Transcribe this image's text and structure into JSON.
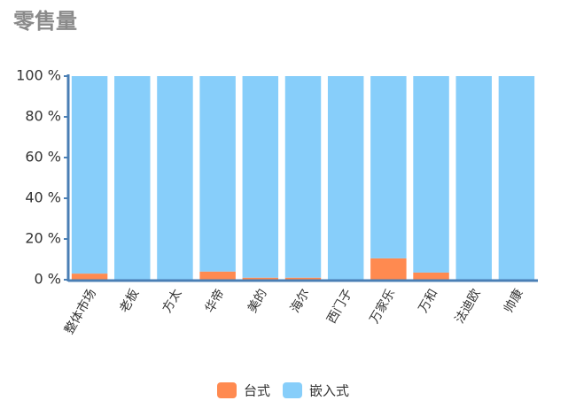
{
  "chart_data": {
    "type": "stacked-bar",
    "title": "零售量",
    "categories": [
      "整体市场",
      "老板",
      "方太",
      "华帝",
      "美的",
      "海尔",
      "西门子",
      "万家乐",
      "万和",
      "法迪欧",
      "帅康"
    ],
    "series": [
      {
        "name": "台式",
        "color": "#ff8a50",
        "values": [
          3,
          0,
          0,
          4,
          1,
          1,
          0,
          10.5,
          3.5,
          0,
          0
        ]
      },
      {
        "name": "嵌入式",
        "color": "#87cefa",
        "values": [
          97,
          100,
          100,
          96,
          99,
          99,
          100,
          89.5,
          96.5,
          100,
          100
        ]
      }
    ],
    "ylim": [
      0,
      100
    ],
    "yticks": [
      {
        "value": 0,
        "label": "0 %"
      },
      {
        "value": 20,
        "label": "20 %"
      },
      {
        "value": 40,
        "label": "40 %"
      },
      {
        "value": 60,
        "label": "60 %"
      },
      {
        "value": 80,
        "label": "80 %"
      },
      {
        "value": 100,
        "label": "100 %"
      }
    ],
    "legend": "bottom"
  }
}
